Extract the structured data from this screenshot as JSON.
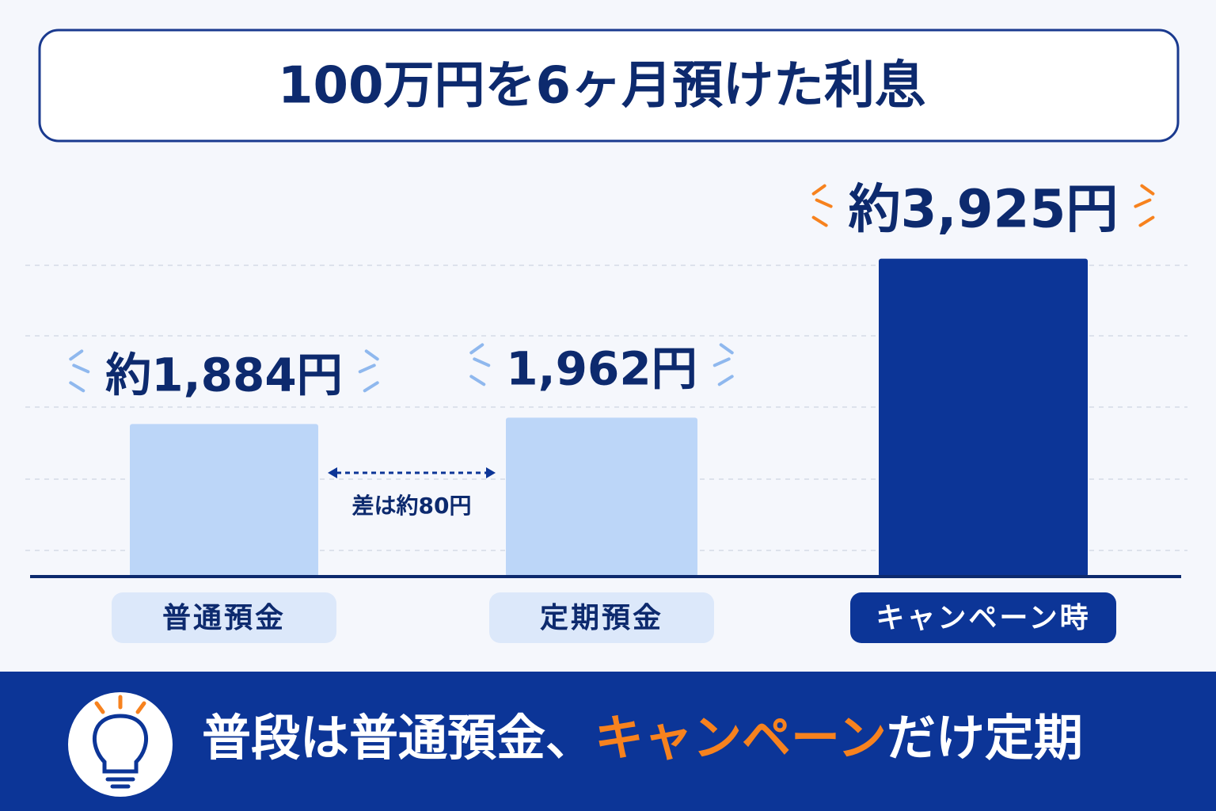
{
  "chart_data": {
    "type": "bar",
    "title": "100万円を6ヶ月預けた利息",
    "categories": [
      "普通預金",
      "定期預金",
      "キャンペーン時"
    ],
    "values": [
      1884,
      1962,
      3925
    ],
    "value_labels": [
      "約1,884円",
      "1,962円",
      "約3,925円"
    ],
    "colors": [
      "#bcd6f8",
      "#bcd6f8",
      "#0c3597"
    ],
    "ylim": [
      0,
      4400
    ],
    "annotation": "差は約80円"
  },
  "footer": {
    "parts": [
      "普段は普通預金、",
      "キャンペーン",
      "だけ定期"
    ]
  }
}
